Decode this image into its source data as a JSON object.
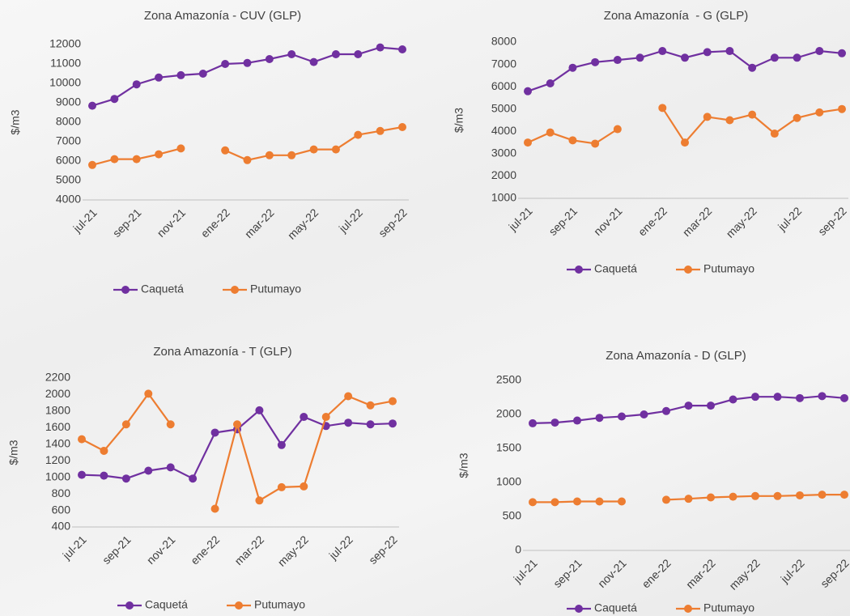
{
  "chart_data": [
    {
      "type": "line",
      "title": "Zona Amazonía - CUV (GLP)",
      "y_label": "$/m3",
      "categories": [
        "jul-21",
        null,
        "sep-21",
        null,
        "nov-21",
        null,
        "ene-22",
        null,
        "mar-22",
        null,
        "may-22",
        null,
        "jul-22",
        null,
        "sep-22"
      ],
      "series": [
        {
          "name": "Caquetá",
          "color": "#7030a0",
          "values": [
            8850,
            9200,
            9950,
            10300,
            10420,
            10500,
            11000,
            11050,
            11250,
            11500,
            11100,
            11500,
            11500,
            11850,
            11750
          ]
        },
        {
          "name": "Putumayo",
          "color": "#ed7d31",
          "values": [
            5800,
            6100,
            6100,
            6350,
            6650,
            null,
            6550,
            6050,
            6300,
            6300,
            6600,
            6600,
            7350,
            7550,
            7750
          ]
        }
      ],
      "ylim": [
        4000,
        12000
      ],
      "yticks": [
        4000,
        5000,
        6000,
        7000,
        8000,
        9000,
        10000,
        11000,
        12000
      ],
      "legend": "bottom"
    },
    {
      "type": "line",
      "title": "Zona Amazonía  - G (GLP)",
      "y_label": "$/m3",
      "categories": [
        "jul-21",
        null,
        "sep-21",
        null,
        "nov-21",
        null,
        "ene-22",
        null,
        "mar-22",
        null,
        "may-22",
        null,
        "jul-22",
        null,
        "sep-22"
      ],
      "series": [
        {
          "name": "Caquetá",
          "color": "#7030a0",
          "values": [
            5800,
            6150,
            6850,
            7100,
            7200,
            7300,
            7600,
            7300,
            7550,
            7600,
            6850,
            7300,
            7300,
            7600,
            7500
          ]
        },
        {
          "name": "Putumayo",
          "color": "#ed7d31",
          "values": [
            3500,
            3950,
            3600,
            3450,
            4100,
            null,
            5050,
            3500,
            4650,
            4500,
            4750,
            3900,
            4600,
            4850,
            5000
          ]
        }
      ],
      "ylim": [
        1000,
        8000
      ],
      "yticks": [
        1000,
        2000,
        3000,
        4000,
        5000,
        6000,
        7000,
        8000
      ],
      "legend": "bottom"
    },
    {
      "type": "line",
      "title": "Zona Amazonía - T (GLP)",
      "y_label": "$/m3",
      "categories": [
        "jul-21",
        null,
        "sep-21",
        null,
        "nov-21",
        null,
        "ene-22",
        null,
        "mar-22",
        null,
        "may-22",
        null,
        "jul-22",
        null,
        "sep-22"
      ],
      "series": [
        {
          "name": "Caquetá",
          "color": "#7030a0",
          "values": [
            1030,
            1020,
            985,
            1080,
            1120,
            985,
            1540,
            1580,
            1810,
            1390,
            1730,
            1620,
            1660,
            1640,
            1650
          ]
        },
        {
          "name": "Putumayo",
          "color": "#ed7d31",
          "values": [
            1460,
            1320,
            1640,
            2010,
            1640,
            null,
            620,
            1640,
            720,
            880,
            890,
            1730,
            1980,
            1870,
            1920
          ]
        }
      ],
      "ylim": [
        400,
        2200
      ],
      "yticks": [
        400,
        600,
        800,
        1000,
        1200,
        1400,
        1600,
        1800,
        2000,
        2200
      ],
      "legend": "bottom"
    },
    {
      "type": "line",
      "title": "Zona Amazonía - D (GLP)",
      "y_label": "$/m3",
      "categories": [
        "jul-21",
        null,
        "sep-21",
        null,
        "nov-21",
        null,
        "ene-22",
        null,
        "mar-22",
        null,
        "may-22",
        null,
        "jul-22",
        null,
        "sep-22"
      ],
      "series": [
        {
          "name": "Caquetá",
          "color": "#7030a0",
          "values": [
            1870,
            1880,
            1910,
            1950,
            1970,
            2000,
            2050,
            2130,
            2130,
            2220,
            2260,
            2260,
            2240,
            2270,
            2240
          ]
        },
        {
          "name": "Putumayo",
          "color": "#ed7d31",
          "values": [
            710,
            710,
            720,
            720,
            720,
            null,
            745,
            760,
            780,
            790,
            800,
            800,
            810,
            820,
            820
          ]
        }
      ],
      "ylim": [
        0,
        2500
      ],
      "yticks": [
        0,
        500,
        1000,
        1500,
        2000,
        2500
      ],
      "legend": "bottom"
    }
  ]
}
